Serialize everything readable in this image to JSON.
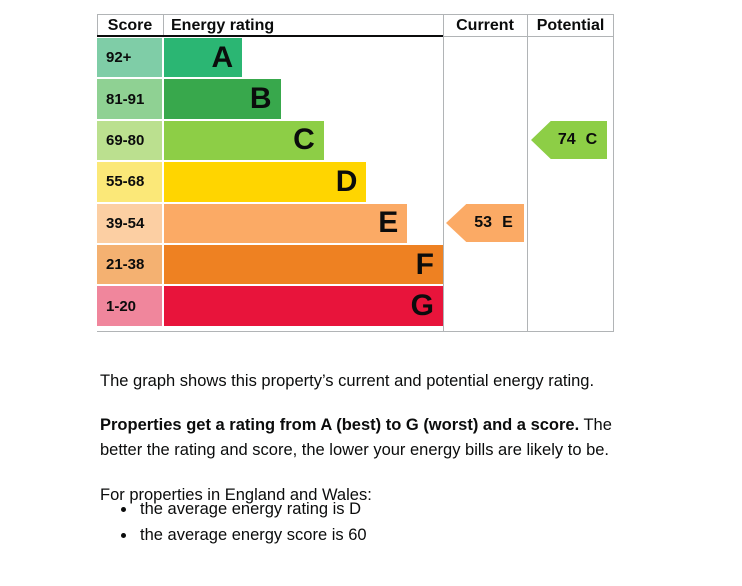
{
  "chart": {
    "headers": {
      "score": "Score",
      "energy_rating": "Energy rating",
      "current": "Current",
      "potential": "Potential"
    },
    "bands": [
      {
        "range": "92+",
        "letter": "A",
        "color": "#2bb673",
        "score_color": "#7fcda7",
        "width_pct": 22.6
      },
      {
        "range": "81-91",
        "letter": "B",
        "color": "#38a84c",
        "score_color": "#8fd193",
        "width_pct": 33.7
      },
      {
        "range": "69-80",
        "letter": "C",
        "color": "#8dce46",
        "score_color": "#bbe08f",
        "width_pct": 46.2
      },
      {
        "range": "55-68",
        "letter": "D",
        "color": "#ffd500",
        "score_color": "#fbe878",
        "width_pct": 58.5
      },
      {
        "range": "39-54",
        "letter": "E",
        "color": "#fbaa65",
        "score_color": "#fccfa3",
        "width_pct": 70.3
      },
      {
        "range": "21-38",
        "letter": "F",
        "color": "#ee8122",
        "score_color": "#f4b171",
        "width_pct": 82.1
      },
      {
        "range": "1-20",
        "letter": "G",
        "color": "#e8143b",
        "score_color": "#f0869c",
        "width_pct": 94.3
      }
    ],
    "current_arrow": {
      "value": "53",
      "letter": "E",
      "color": "#fbaa65"
    },
    "potential_arrow": {
      "value": "74",
      "letter": "C",
      "color": "#8dce46"
    },
    "grid_color": "#b1b4b6"
  },
  "paragraphs": {
    "intro": "The graph shows this property’s current and potential energy rating.",
    "lead_bold": "Properties get a rating from A (best) to G (worst) and a score.",
    "lead_rest": " The better the rating and score, the lower your energy bills are likely to be.",
    "england_wales": "For properties in England and Wales:",
    "bullets": [
      "the average energy rating is D",
      "the average energy score is 60"
    ]
  },
  "chart_data": {
    "type": "bar",
    "orientation": "horizontal",
    "title": "Energy rating",
    "columns": [
      "Score",
      "Energy rating",
      "Current",
      "Potential"
    ],
    "categories": [
      "A",
      "B",
      "C",
      "D",
      "E",
      "F",
      "G"
    ],
    "score_ranges": [
      "92+",
      "81-91",
      "69-80",
      "55-68",
      "39-54",
      "21-38",
      "1-20"
    ],
    "bar_lengths_relative_pct": [
      22.6,
      33.7,
      46.2,
      58.5,
      70.3,
      82.1,
      94.3
    ],
    "band_colors": [
      "#2bb673",
      "#38a84c",
      "#8dce46",
      "#ffd500",
      "#fbaa65",
      "#ee8122",
      "#e8143b"
    ],
    "current": {
      "score": 53,
      "rating": "E"
    },
    "potential": {
      "score": 74,
      "rating": "C"
    },
    "legend_position": "none",
    "grid": false
  }
}
